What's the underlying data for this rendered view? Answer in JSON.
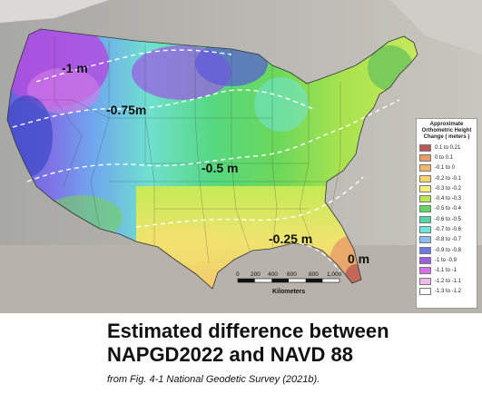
{
  "map": {
    "contour_labels": [
      "-1 m",
      "-0.75m",
      "-0.5 m",
      "-0.25 m",
      "0 m"
    ],
    "scale_bar": {
      "ticks": [
        "0",
        "200",
        "400",
        "600",
        "800",
        "1,000"
      ],
      "unit_label": "Kilometers"
    }
  },
  "legend": {
    "title_lines": [
      "Approximate",
      "Orthometric Height",
      "Change ( meters )"
    ],
    "items": [
      {
        "label": "0.1 to 0.21",
        "color": "#b85a55"
      },
      {
        "label": "0 to 0.1",
        "color": "#e99b6a"
      },
      {
        "label": "-0.1 to 0",
        "color": "#f3b66a"
      },
      {
        "label": "-0.2 to -0.1",
        "color": "#f8d46e"
      },
      {
        "label": "-0.3 to -0.2",
        "color": "#f4ef7a"
      },
      {
        "label": "-0.4 to -0.3",
        "color": "#b9e84f"
      },
      {
        "label": "-0.5 to -0.4",
        "color": "#62d95b"
      },
      {
        "label": "-0.6 to -0.5",
        "color": "#52d6a6"
      },
      {
        "label": "-0.7 to -0.6",
        "color": "#6fe6d9"
      },
      {
        "label": "-0.8 to -0.7",
        "color": "#86bff0"
      },
      {
        "label": "-0.9 to -0.8",
        "color": "#6f79e6"
      },
      {
        "label": "-1 to -0.9",
        "color": "#9a5fe3"
      },
      {
        "label": "-1.1 to -1",
        "color": "#d86ee8"
      },
      {
        "label": "-1.2 to -1.1",
        "color": "#f1b7ef"
      },
      {
        "label": "-1.3 to -1.2",
        "color": "#ffffff"
      }
    ]
  },
  "caption": {
    "title_line1": "Estimated difference between",
    "title_line2": "NAPGD2022 and NAVD 88",
    "source": "from Fig. 4-1 National Geodetic Survey (2021b)."
  }
}
